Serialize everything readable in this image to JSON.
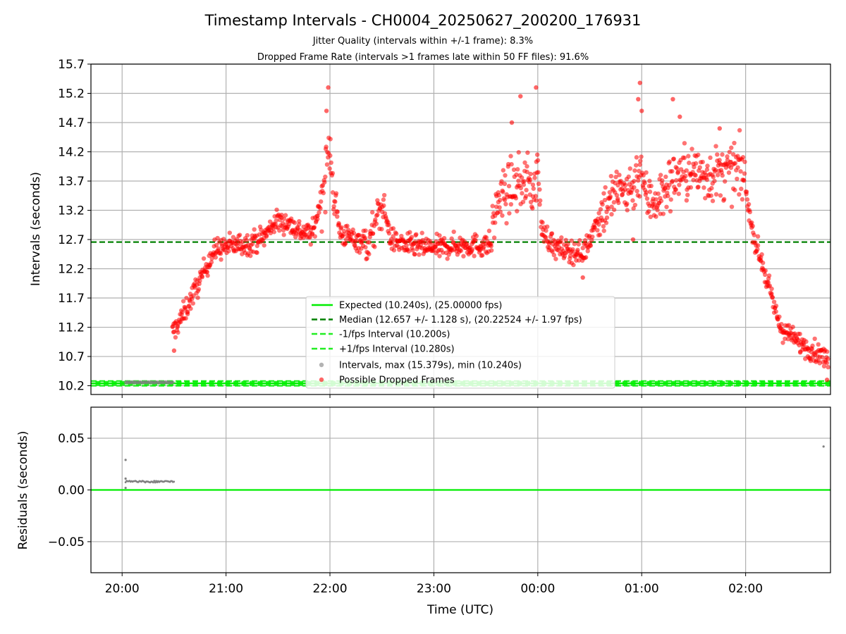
{
  "figure": {
    "title": "Timestamp Intervals - CH0004_20250627_200200_176931",
    "subtitle_line1": "Jitter Quality (intervals within +/-1 frame): 8.3%",
    "subtitle_line2": "Dropped Frame Rate (intervals >1 frames late within 50 FF files): 91.6%"
  },
  "chart_data": [
    {
      "id": "intervals",
      "type": "scatter",
      "ylabel": "Intervals (seconds)",
      "ylim": [
        10.05,
        15.7
      ],
      "yticks": [
        10.2,
        10.7,
        11.2,
        11.7,
        12.2,
        12.7,
        13.2,
        13.7,
        14.2,
        14.7,
        15.2,
        15.7
      ],
      "ytick_labels": [
        "10.2",
        "10.7",
        "11.2",
        "11.7",
        "12.2",
        "12.7",
        "13.2",
        "13.7",
        "14.2",
        "14.7",
        "15.2",
        "15.7"
      ],
      "grid": true,
      "legend_position": "lower-center",
      "lines": [
        {
          "name": "Expected (10.240s), (25.00000 fps)",
          "y": 10.24,
          "color": "#00ee00",
          "style": "solid"
        },
        {
          "name": "Median (12.657 +/- 1.128 s), (20.22524 +/- 1.97 fps)",
          "y": 12.657,
          "color": "#008000",
          "style": "dashed"
        },
        {
          "name": "-1/fps Interval (10.200s)",
          "y": 10.2,
          "color": "#22ee22",
          "style": "dashed"
        },
        {
          "name": "+1/fps Interval (10.280s)",
          "y": 10.28,
          "color": "#22ee22",
          "style": "dashed"
        }
      ],
      "series": [
        {
          "name": "Intervals, max (15.379s), min (10.240s)",
          "color": "#808080",
          "segments": [
            {
              "x_start": "20:02",
              "x_end": "20:30",
              "y": 10.26
            }
          ]
        },
        {
          "name": "Possible Dropped Frames",
          "color": "#ff0000",
          "trend": [
            {
              "x": "20:29",
              "y": 11.1
            },
            {
              "x": "20:35",
              "y": 11.4
            },
            {
              "x": "20:40",
              "y": 11.7
            },
            {
              "x": "20:45",
              "y": 12.0
            },
            {
              "x": "20:50",
              "y": 12.35
            },
            {
              "x": "20:55",
              "y": 12.55
            },
            {
              "x": "21:05",
              "y": 12.6
            },
            {
              "x": "21:15",
              "y": 12.65
            },
            {
              "x": "21:22",
              "y": 12.75
            },
            {
              "x": "21:28",
              "y": 13.0
            },
            {
              "x": "21:35",
              "y": 13.0
            },
            {
              "x": "21:42",
              "y": 12.85
            },
            {
              "x": "21:50",
              "y": 12.8
            },
            {
              "x": "21:55",
              "y": 13.4
            },
            {
              "x": "21:58",
              "y": 13.9
            },
            {
              "x": "22:00",
              "y": 14.3
            },
            {
              "x": "22:03",
              "y": 13.3
            },
            {
              "x": "22:06",
              "y": 12.8
            },
            {
              "x": "22:15",
              "y": 12.7
            },
            {
              "x": "22:23",
              "y": 12.65
            },
            {
              "x": "22:28",
              "y": 13.1
            },
            {
              "x": "22:31",
              "y": 13.3
            },
            {
              "x": "22:35",
              "y": 12.7
            },
            {
              "x": "22:45",
              "y": 12.6
            },
            {
              "x": "23:00",
              "y": 12.55
            },
            {
              "x": "23:15",
              "y": 12.6
            },
            {
              "x": "23:30",
              "y": 12.6
            },
            {
              "x": "23:33",
              "y": 12.65
            },
            {
              "x": "23:36",
              "y": 13.3
            },
            {
              "x": "23:45",
              "y": 13.6
            },
            {
              "x": "23:55",
              "y": 13.7
            },
            {
              "x": "23:58",
              "y": 13.5
            },
            {
              "x": "00:00",
              "y": 14.0
            },
            {
              "x": "00:02",
              "y": 12.9
            },
            {
              "x": "00:10",
              "y": 12.55
            },
            {
              "x": "00:20",
              "y": 12.5
            },
            {
              "x": "00:26",
              "y": 12.45
            },
            {
              "x": "00:30",
              "y": 12.7
            },
            {
              "x": "00:35",
              "y": 13.1
            },
            {
              "x": "00:40",
              "y": 13.3
            },
            {
              "x": "00:45",
              "y": 13.5
            },
            {
              "x": "00:55",
              "y": 13.6
            },
            {
              "x": "01:00",
              "y": 14.0
            },
            {
              "x": "01:02",
              "y": 13.4
            },
            {
              "x": "01:10",
              "y": 13.4
            },
            {
              "x": "01:15",
              "y": 13.6
            },
            {
              "x": "01:20",
              "y": 13.8
            },
            {
              "x": "01:30",
              "y": 13.85
            },
            {
              "x": "01:40",
              "y": 13.8
            },
            {
              "x": "01:50",
              "y": 13.85
            },
            {
              "x": "01:57",
              "y": 13.9
            },
            {
              "x": "02:00",
              "y": 13.6
            },
            {
              "x": "02:03",
              "y": 13.0
            },
            {
              "x": "02:06",
              "y": 12.6
            },
            {
              "x": "02:10",
              "y": 12.25
            },
            {
              "x": "02:15",
              "y": 11.7
            },
            {
              "x": "02:20",
              "y": 11.2
            },
            {
              "x": "02:28",
              "y": 11.0
            },
            {
              "x": "02:36",
              "y": 10.85
            },
            {
              "x": "02:45",
              "y": 10.7
            },
            {
              "x": "02:48",
              "y": 10.6
            }
          ],
          "spikes": [
            {
              "x": "21:59",
              "y": 15.3
            },
            {
              "x": "21:58",
              "y": 14.9
            },
            {
              "x": "23:45",
              "y": 14.7
            },
            {
              "x": "23:50",
              "y": 15.15
            },
            {
              "x": "23:59",
              "y": 15.3
            },
            {
              "x": "00:58",
              "y": 15.1
            },
            {
              "x": "00:59",
              "y": 15.379
            },
            {
              "x": "01:00",
              "y": 14.9
            },
            {
              "x": "01:18",
              "y": 15.1
            },
            {
              "x": "01:22",
              "y": 14.8
            },
            {
              "x": "01:45",
              "y": 14.6
            },
            {
              "x": "00:55",
              "y": 12.7
            },
            {
              "x": "00:26",
              "y": 12.05
            },
            {
              "x": "20:30",
              "y": 10.8
            },
            {
              "x": "02:47",
              "y": 10.3
            }
          ]
        }
      ]
    },
    {
      "id": "residuals",
      "type": "scatter",
      "xlabel": "Time (UTC)",
      "ylabel": "Residuals (seconds)",
      "ylim": [
        -0.08,
        0.08
      ],
      "yticks": [
        0.05,
        0.0,
        -0.05
      ],
      "ytick_labels": [
        "0.05",
        "0.00",
        "−0.05"
      ],
      "grid": true,
      "zero_line_color": "#00ee00",
      "series": [
        {
          "name": "Residuals",
          "color": "#808080",
          "points": [
            {
              "x": "20:02",
              "y": 0.029
            },
            {
              "x": "20:02",
              "y": 0.011
            },
            {
              "x": "20:02",
              "y": 0.002
            }
          ],
          "segments": [
            {
              "x_start": "20:02",
              "x_end": "20:30",
              "y": 0.008
            }
          ],
          "extra_points": [
            {
              "x": "02:45",
              "y": 0.042
            }
          ]
        }
      ]
    }
  ],
  "x_axis": {
    "ticks": [
      "20:00",
      "21:00",
      "22:00",
      "23:00",
      "00:00",
      "01:00",
      "02:00"
    ],
    "range_start": "19:42",
    "range_end": "02:49"
  }
}
